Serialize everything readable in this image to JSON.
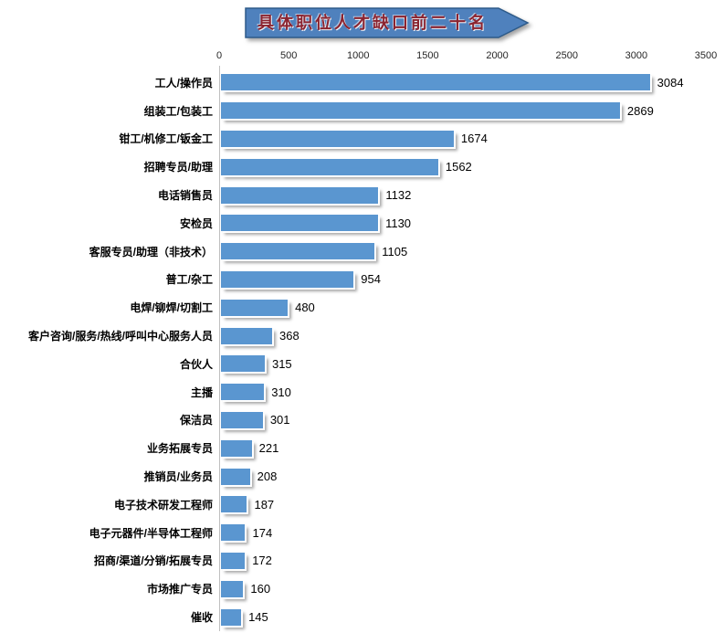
{
  "page": {
    "background": "#ffffff"
  },
  "title_banner": {
    "text": "具体职位人才缺口前二十名",
    "fill_color": "#4f81bd",
    "border_color": "#2e5b8a",
    "text_color": "#8b2430"
  },
  "chart_data": {
    "type": "bar",
    "orientation": "horizontal_bars",
    "title": "具体职位人才缺口前二十名",
    "categories": [
      "工人/操作员",
      "组装工/包装工",
      "钳工/机修工/钣金工",
      "招聘专员/助理",
      "电话销售员",
      "安检员",
      "客服专员/助理（非技术）",
      "普工/杂工",
      "电焊/铆焊/切割工",
      "客户咨询/服务/热线/呼叫中心服务人员",
      "合伙人",
      "主播",
      "保洁员",
      "业务拓展专员",
      "推销员/业务员",
      "电子技术研发工程师",
      "电子元器件/半导体工程师",
      "招商/渠道/分销/拓展专员",
      "市场推广专员",
      "催收"
    ],
    "values": [
      3084,
      2869,
      1674,
      1562,
      1132,
      1130,
      1105,
      954,
      480,
      368,
      315,
      310,
      301,
      221,
      208,
      187,
      174,
      172,
      160,
      145
    ],
    "xlim": [
      0,
      3500
    ],
    "xticks": [
      0,
      500,
      1000,
      1500,
      2000,
      2500,
      3000,
      3500
    ],
    "axis_position": "top",
    "grid": false,
    "legend": "none",
    "bar_color": "#5a96d0",
    "axis_line_color": "#bfbfbf",
    "tick_label_color": "#262626",
    "value_label_color": "#000000",
    "category_label_color": "#000000"
  }
}
